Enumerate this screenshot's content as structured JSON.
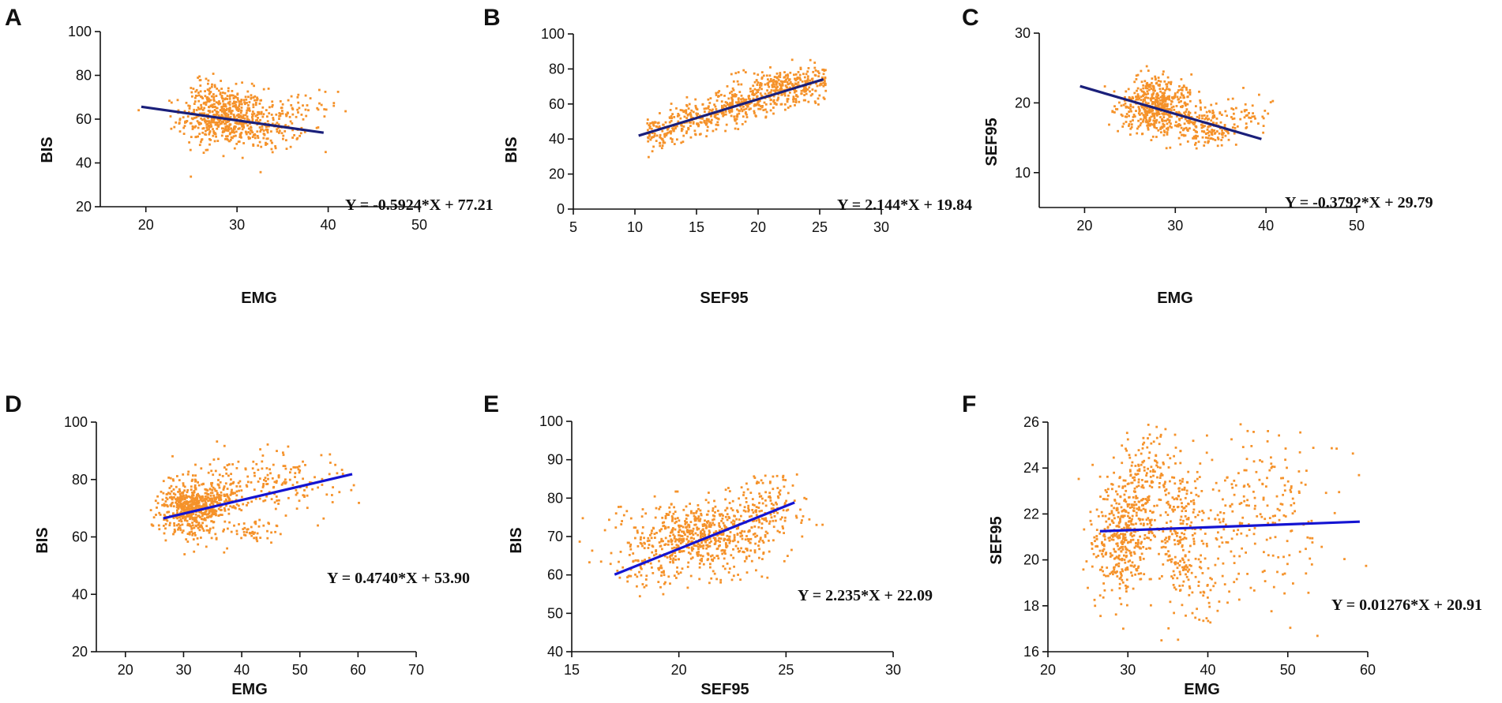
{
  "colors": {
    "points": "#f5922a",
    "fit_top": "#1a1f7a",
    "fit_bottom": "#1414d2",
    "axis": "#111111"
  },
  "chart_data": [
    {
      "panel": "A",
      "type": "scatter",
      "xlabel": "EMG",
      "ylabel": "BIS",
      "xlim": [
        15,
        50
      ],
      "ylim": [
        20,
        100
      ],
      "xticks": [
        20,
        30,
        40,
        50
      ],
      "yticks": [
        20,
        40,
        60,
        80,
        100
      ],
      "equation": "Y = -0.5924*X + 77.21",
      "fit": {
        "slope": -0.5924,
        "intercept": 77.21,
        "x_range": [
          19.5,
          39.5
        ]
      },
      "clusters": [
        {
          "cx": 28.5,
          "cy": 61,
          "sx": 2.3,
          "sy": 6.5,
          "n": 520
        },
        {
          "cx": 33.5,
          "cy": 57,
          "sx": 1.8,
          "sy": 5.5,
          "n": 140
        },
        {
          "cx": 37,
          "cy": 63,
          "sx": 2.0,
          "sy": 6.0,
          "n": 40
        },
        {
          "cx": 26.5,
          "cy": 72,
          "sx": 1.2,
          "sy": 4.0,
          "n": 40
        }
      ]
    },
    {
      "panel": "B",
      "type": "scatter",
      "xlabel": "SEF95",
      "ylabel": "BIS",
      "xlim": [
        5,
        30
      ],
      "ylim": [
        0,
        100
      ],
      "xticks": [
        5,
        10,
        15,
        20,
        25,
        30
      ],
      "yticks": [
        0,
        20,
        40,
        60,
        80,
        100
      ],
      "equation": "Y = 2.144*X + 19.84",
      "fit": {
        "slope": 2.144,
        "intercept": 19.84,
        "x_range": [
          10.3,
          25.3
        ]
      },
      "clusters": [
        {
          "along": [
            11,
            25.5
          ],
          "slope": 2.144,
          "intercept": 19.84,
          "spread": 5.5,
          "n": 650
        },
        {
          "cx": 21.5,
          "cy": 74,
          "sx": 1.5,
          "sy": 3.5,
          "n": 80
        }
      ]
    },
    {
      "panel": "C",
      "type": "scatter",
      "xlabel": "EMG",
      "ylabel": "SEF95",
      "xlim": [
        15,
        50
      ],
      "ylim": [
        5,
        30
      ],
      "xticks": [
        20,
        30,
        40,
        50
      ],
      "yticks": [
        10,
        20,
        30
      ],
      "equation": "Y = -0.3792*X + 29.79",
      "fit": {
        "slope": -0.3792,
        "intercept": 29.79,
        "x_range": [
          19.5,
          39.5
        ]
      },
      "clusters": [
        {
          "cx": 28,
          "cy": 19.5,
          "sx": 2.0,
          "sy": 2.0,
          "n": 520
        },
        {
          "cx": 33,
          "cy": 16.5,
          "sx": 2.0,
          "sy": 1.3,
          "n": 170
        },
        {
          "cx": 38,
          "cy": 18.5,
          "sx": 1.5,
          "sy": 1.5,
          "n": 50
        }
      ]
    },
    {
      "panel": "D",
      "type": "scatter",
      "xlabel": "EMG",
      "ylabel": "BIS",
      "xlim": [
        15,
        70
      ],
      "ylim": [
        20,
        100
      ],
      "xticks": [
        20,
        30,
        40,
        50,
        60,
        70
      ],
      "yticks": [
        20,
        40,
        60,
        80,
        100
      ],
      "equation": "Y = 0.4740*X + 53.90",
      "fit": {
        "slope": 0.474,
        "intercept": 53.9,
        "x_range": [
          26.5,
          59
        ]
      },
      "clusters": [
        {
          "cx": 31,
          "cy": 70,
          "sx": 2.5,
          "sy": 5.0,
          "n": 520
        },
        {
          "cx": 36,
          "cy": 73,
          "sx": 2.0,
          "sy": 5.0,
          "n": 150
        },
        {
          "cx": 46,
          "cy": 79,
          "sx": 5.0,
          "sy": 6.0,
          "n": 160
        },
        {
          "cx": 41,
          "cy": 62,
          "sx": 3.0,
          "sy": 2.0,
          "n": 50
        }
      ]
    },
    {
      "panel": "E",
      "type": "scatter",
      "xlabel": "SEF95",
      "ylabel": "BIS",
      "xlim": [
        15,
        30
      ],
      "ylim": [
        40,
        100
      ],
      "xticks": [
        15,
        20,
        25,
        30
      ],
      "yticks": [
        40,
        50,
        60,
        70,
        80,
        90,
        100
      ],
      "equation": "Y = 2.235*X + 22.09",
      "fit": {
        "slope": 2.235,
        "intercept": 22.09,
        "x_range": [
          17,
          25.4
        ]
      },
      "clusters": [
        {
          "cx": 21,
          "cy": 70,
          "sx": 1.6,
          "sy": 4.5,
          "n": 620
        },
        {
          "cx": 24,
          "cy": 78,
          "sx": 1.0,
          "sy": 4.0,
          "n": 140
        },
        {
          "cx": 18.5,
          "cy": 62,
          "sx": 0.8,
          "sy": 3.0,
          "n": 60
        }
      ]
    },
    {
      "panel": "F",
      "type": "scatter",
      "xlabel": "EMG",
      "ylabel": "SEF95",
      "xlim": [
        20,
        60
      ],
      "ylim": [
        16,
        26
      ],
      "xticks": [
        20,
        30,
        40,
        50,
        60
      ],
      "yticks": [
        16,
        18,
        20,
        22,
        24,
        26
      ],
      "equation": "Y = 0.01276*X + 20.91",
      "fit": {
        "slope": 0.01276,
        "intercept": 20.91,
        "x_range": [
          26.5,
          59
        ]
      },
      "clusters": [
        {
          "cx": 29,
          "cy": 21,
          "sx": 1.8,
          "sy": 1.3,
          "n": 380
        },
        {
          "cx": 32,
          "cy": 23,
          "sx": 1.5,
          "sy": 1.6,
          "n": 180
        },
        {
          "cx": 36.5,
          "cy": 21.5,
          "sx": 1.3,
          "sy": 1.7,
          "n": 200
        },
        {
          "cx": 39,
          "cy": 19,
          "sx": 1.5,
          "sy": 1.0,
          "n": 60
        },
        {
          "cx": 46,
          "cy": 22,
          "sx": 5.0,
          "sy": 1.7,
          "n": 230
        }
      ]
    }
  ]
}
